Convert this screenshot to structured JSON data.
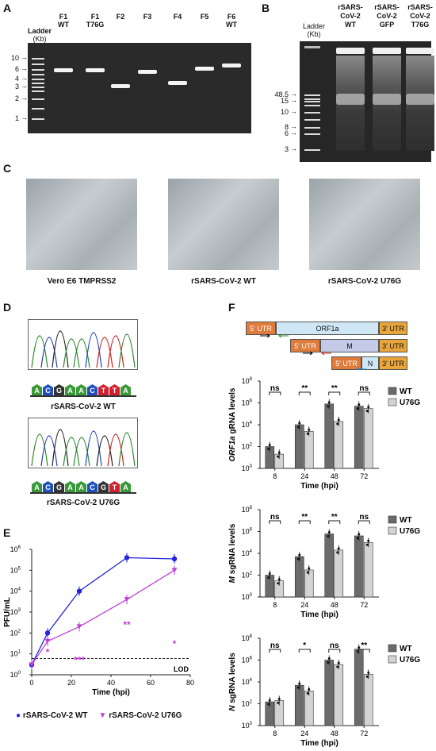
{
  "panels": {
    "A": "A",
    "B": "B",
    "C": "C",
    "D": "D",
    "E": "E",
    "F": "F"
  },
  "panelA": {
    "ladder_title": "Ladder",
    "ladder_unit": "(Kb)",
    "lanes": [
      {
        "l1": "F1",
        "l2": "WT"
      },
      {
        "l1": "F1",
        "l2": "T76G"
      },
      {
        "l1": "F2",
        "l2": ""
      },
      {
        "l1": "F3",
        "l2": ""
      },
      {
        "l1": "F4",
        "l2": ""
      },
      {
        "l1": "F5",
        "l2": ""
      },
      {
        "l1": "F6",
        "l2": "WT"
      }
    ],
    "marks": [
      "10",
      "6",
      "4",
      "3",
      "2",
      "1"
    ]
  },
  "panelB": {
    "ladder_title": "Ladder",
    "ladder_unit": "(Kb)",
    "lanes": [
      {
        "l1": "rSARS-",
        "l2": "CoV-2",
        "l3": "WT"
      },
      {
        "l1": "rSARS-",
        "l2": "CoV-2",
        "l3": "GFP"
      },
      {
        "l1": "rSARS-",
        "l2": "CoV-2",
        "l3": "T76G"
      }
    ],
    "marks": [
      "48.5",
      "15",
      "10",
      "8",
      "6",
      "3"
    ]
  },
  "panelC": {
    "captions": [
      "Vero E6 TMPRSS2",
      "rSARS-CoV-2 WT",
      "rSARS-CoV-2 U76G"
    ]
  },
  "panelD": {
    "wt_seq": [
      "A",
      "C",
      "G",
      "A",
      "A",
      "C",
      "T",
      "T",
      "A"
    ],
    "mut_seq": [
      "A",
      "C",
      "G",
      "A",
      "A",
      "C",
      "G",
      "T",
      "A"
    ],
    "wt_caption": "rSARS-CoV-2 WT",
    "mut_caption": "rSARS-CoV-2 U76G"
  },
  "panelE": {
    "ylabel": "PFU/mL",
    "xlabel": "Time (hpi)",
    "lod": "LOD",
    "yticks": [
      "10",
      "10",
      "10",
      "10",
      "10",
      "10",
      "10"
    ],
    "yexp": [
      "0",
      "1",
      "2",
      "3",
      "4",
      "5",
      "6"
    ],
    "xticks": [
      "0",
      "20",
      "40",
      "60",
      "80"
    ],
    "legend": [
      "rSARS-CoV-2 WT",
      "rSARS-CoV-2 U76G"
    ],
    "sig": [
      {
        "label": "*"
      },
      {
        "label": "***"
      },
      {
        "label": "**"
      },
      {
        "label": "*"
      }
    ]
  },
  "panelF": {
    "genome": {
      "utr5": "5' UTR",
      "orf1a": "ORF1a",
      "utr3": "3' UTR",
      "m": "M",
      "n": "N"
    },
    "legend": [
      "WT",
      "U76G"
    ],
    "xlabel": "Time (hpi)",
    "xticks": [
      "8",
      "24",
      "48",
      "72"
    ],
    "plots": [
      {
        "ylabel_it": "ORF1a",
        "ylabel_rest": " gRNA levels",
        "sig": [
          "ns",
          "**",
          "**",
          "ns"
        ]
      },
      {
        "ylabel_it": "M",
        "ylabel_rest": " sgRNA levels",
        "sig": [
          "ns",
          "**",
          "**",
          "ns"
        ]
      },
      {
        "ylabel_it": "N",
        "ylabel_rest": " sgRNA levels",
        "sig": [
          "ns",
          "*",
          "ns",
          "**"
        ]
      }
    ]
  },
  "chart_data": [
    {
      "type": "line",
      "xlabel": "Time (hpi)",
      "ylabel": "PFU/mL",
      "x": [
        0,
        8,
        24,
        48,
        72
      ],
      "ylim": [
        1,
        1000000
      ],
      "yscale": "log",
      "series": [
        {
          "name": "rSARS-CoV-2 WT",
          "color": "#2424e0",
          "values": [
            3,
            100,
            10000,
            400000,
            350000
          ]
        },
        {
          "name": "rSARS-CoV-2 U76G",
          "color": "#c040d8",
          "values": [
            3,
            40,
            200,
            4000,
            100000
          ]
        }
      ],
      "reference_line": {
        "label": "LOD",
        "value": 6
      }
    },
    {
      "type": "bar",
      "ylabel": "ORF1a gRNA levels",
      "xlabel": "Time (hpi)",
      "categories": [
        "8",
        "24",
        "48",
        "72"
      ],
      "yscale": "log",
      "ylim": [
        1,
        100000000
      ],
      "series": [
        {
          "name": "WT",
          "color": "#6b6b6b",
          "values": [
            100,
            10000,
            800000,
            500000
          ]
        },
        {
          "name": "U76G",
          "color": "#d3d3d3",
          "values": [
            20,
            2500,
            20000,
            300000
          ]
        }
      ]
    },
    {
      "type": "bar",
      "ylabel": "M sgRNA levels",
      "xlabel": "Time (hpi)",
      "categories": [
        "8",
        "24",
        "48",
        "72"
      ],
      "yscale": "log",
      "ylim": [
        1,
        100000000
      ],
      "series": [
        {
          "name": "WT",
          "color": "#6b6b6b",
          "values": [
            100,
            5000,
            600000,
            400000
          ]
        },
        {
          "name": "U76G",
          "color": "#d3d3d3",
          "values": [
            30,
            300,
            20000,
            100000
          ]
        }
      ]
    },
    {
      "type": "bar",
      "ylabel": "N sgRNA levels",
      "xlabel": "Time (hpi)",
      "categories": [
        "8",
        "24",
        "48",
        "72"
      ],
      "yscale": "log",
      "ylim": [
        1,
        100000000
      ],
      "series": [
        {
          "name": "WT",
          "color": "#6b6b6b",
          "values": [
            150,
            5000,
            1000000,
            10000000
          ]
        },
        {
          "name": "U76G",
          "color": "#d3d3d3",
          "values": [
            200,
            1500,
            400000,
            50000
          ]
        }
      ]
    }
  ]
}
